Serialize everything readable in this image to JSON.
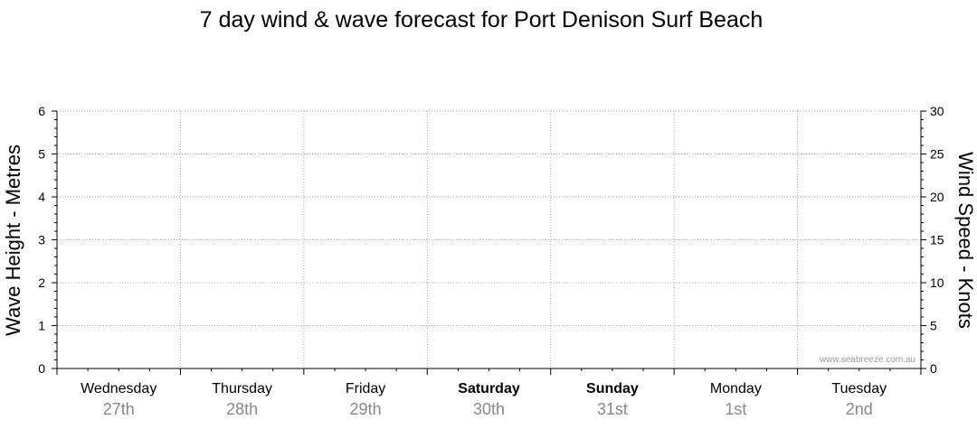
{
  "chart_data": {
    "type": "line",
    "title": "7 day wind & wave forecast for Port Denison Surf Beach",
    "ylabel_left": "Wave Height - Metres",
    "ylabel_right": "Wind Speed - Knots",
    "y_left": {
      "min": 0,
      "max": 6,
      "ticks": [
        0,
        1,
        2,
        3,
        4,
        5,
        6
      ]
    },
    "y_right": {
      "min": 0,
      "max": 30,
      "ticks": [
        0,
        5,
        10,
        15,
        20,
        25,
        30
      ]
    },
    "days": [
      {
        "name": "Wednesday",
        "date": "27th",
        "bold": false
      },
      {
        "name": "Thursday",
        "date": "28th",
        "bold": false
      },
      {
        "name": "Friday",
        "date": "29th",
        "bold": false
      },
      {
        "name": "Saturday",
        "date": "30th",
        "bold": true
      },
      {
        "name": "Sunday",
        "date": "31st",
        "bold": true
      },
      {
        "name": "Monday",
        "date": "1st",
        "bold": false
      },
      {
        "name": "Tuesday",
        "date": "2nd",
        "bold": false
      }
    ],
    "series": [],
    "grid": true,
    "watermark": "www.seabreeze.com.au"
  },
  "colors": {
    "grid": "#aaaaaa",
    "axis": "#000000",
    "date": "#888888"
  }
}
